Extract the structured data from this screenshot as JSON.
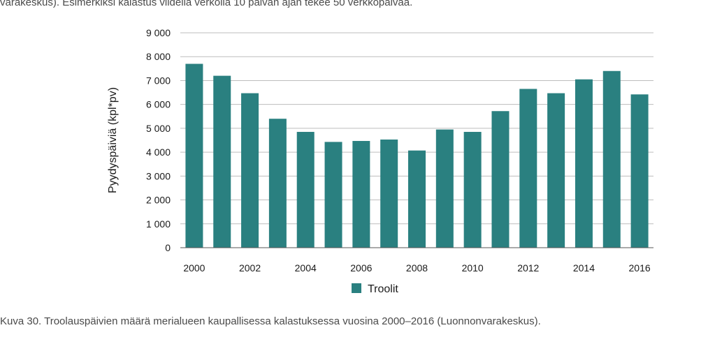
{
  "page": {
    "top_text": "varakeskus). Esimerkiksi kalastus viidellä verkolla 10 päivän ajan tekee 50 verkkopäivää.",
    "caption": "Kuva 30. Troolauspäivien määrä merialueen kaupallisessa kalastuksessa vuosina 2000–2016 (Luonnonvarakeskus)."
  },
  "chart_data": {
    "type": "bar",
    "title": "",
    "xlabel": "",
    "ylabel": "Pyydyspäiviä (kpl*pv)",
    "ylim": [
      0,
      9000
    ],
    "yticks": [
      "0",
      "1 000",
      "2 000",
      "3 000",
      "4 000",
      "5 000",
      "6 000",
      "7 000",
      "8 000",
      "9 000"
    ],
    "xtick_labels": [
      "2000",
      "2002",
      "2004",
      "2006",
      "2008",
      "2010",
      "2012",
      "2014",
      "2016"
    ],
    "categories": [
      "2000",
      "2001",
      "2002",
      "2003",
      "2004",
      "2005",
      "2006",
      "2007",
      "2008",
      "2009",
      "2010",
      "2011",
      "2012",
      "2013",
      "2014",
      "2015",
      "2016"
    ],
    "series": [
      {
        "name": "Troolit",
        "color": "#2a8080",
        "values": [
          7700,
          7200,
          6470,
          5400,
          4850,
          4430,
          4470,
          4530,
          4070,
          4950,
          4850,
          5720,
          6650,
          6470,
          7050,
          7400,
          6420
        ]
      }
    ],
    "grid": true,
    "legend_position": "bottom-center"
  }
}
